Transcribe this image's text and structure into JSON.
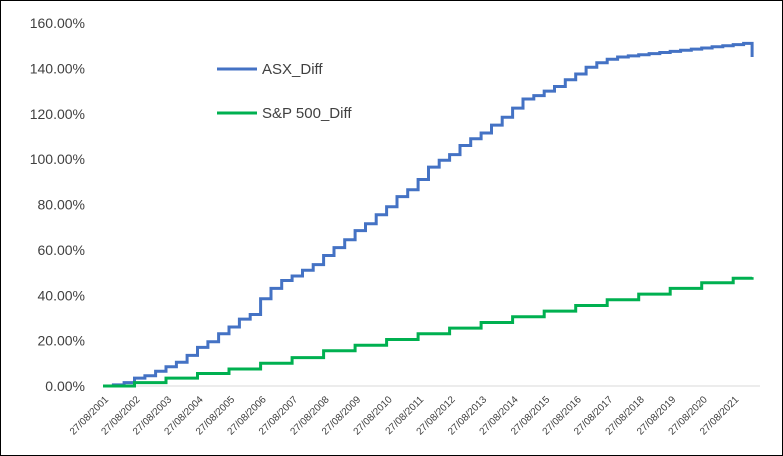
{
  "chart_data": {
    "type": "line",
    "title": "",
    "xlabel": "",
    "ylabel": "",
    "ylim": [
      0,
      160
    ],
    "y_ticks": [
      "0.00%",
      "20.00%",
      "40.00%",
      "60.00%",
      "80.00%",
      "100.00%",
      "120.00%",
      "140.00%",
      "160.00%"
    ],
    "x_tick_labels": [
      "27/08/2001",
      "27/08/2002",
      "27/08/2003",
      "27/08/2004",
      "27/08/2005",
      "27/08/2006",
      "27/08/2007",
      "27/08/2008",
      "27/08/2009",
      "27/08/2010",
      "27/08/2011",
      "27/08/2012",
      "27/08/2013",
      "27/08/2014",
      "27/08/2015",
      "27/08/2016",
      "27/08/2017",
      "27/08/2018",
      "27/08/2019",
      "27/08/2020",
      "27/08/2021"
    ],
    "grid": false,
    "legend_position": "top-left",
    "series": [
      {
        "name": "ASX_Diff",
        "color": "#4472C4",
        "x": [
          2001.0,
          2001.33,
          2001.67,
          2002.0,
          2002.33,
          2002.67,
          2003.0,
          2003.33,
          2003.67,
          2004.0,
          2004.33,
          2004.67,
          2005.0,
          2005.33,
          2005.67,
          2006.0,
          2006.33,
          2006.67,
          2007.0,
          2007.33,
          2007.67,
          2008.0,
          2008.33,
          2008.67,
          2009.0,
          2009.33,
          2009.67,
          2010.0,
          2010.33,
          2010.67,
          2011.0,
          2011.33,
          2011.67,
          2012.0,
          2012.33,
          2012.67,
          2013.0,
          2013.33,
          2013.67,
          2014.0,
          2014.33,
          2014.67,
          2015.0,
          2015.33,
          2015.67,
          2016.0,
          2016.33,
          2016.67,
          2017.0,
          2017.33,
          2017.67,
          2018.0,
          2018.33,
          2018.67,
          2019.0,
          2019.33,
          2019.67,
          2020.0,
          2020.33,
          2020.67,
          2021.0,
          2021.33,
          2021.6
        ],
        "values": [
          0.0,
          0.5,
          1.5,
          3.5,
          4.5,
          6.5,
          8.5,
          10.5,
          13.5,
          17.0,
          19.5,
          23.0,
          26.0,
          29.5,
          31.5,
          38.5,
          43.0,
          46.5,
          48.5,
          51.0,
          53.5,
          57.5,
          61.0,
          64.5,
          68.5,
          71.5,
          75.5,
          79.0,
          83.5,
          86.5,
          91.0,
          96.5,
          99.5,
          102.0,
          106.0,
          109.0,
          111.5,
          115.0,
          118.5,
          122.5,
          126.5,
          128.0,
          130.0,
          132.0,
          135.0,
          137.5,
          140.5,
          142.5,
          144.0,
          145.0,
          145.5,
          146.0,
          146.5,
          147.0,
          147.5,
          148.0,
          148.5,
          149.0,
          149.5,
          150.0,
          150.5,
          151.0,
          145.0
        ]
      },
      {
        "name": "S&P 500_Diff",
        "color": "#00B050",
        "x": [
          2001.0,
          2002.0,
          2003.0,
          2004.0,
          2005.0,
          2006.0,
          2007.0,
          2008.0,
          2009.0,
          2010.0,
          2011.0,
          2012.0,
          2013.0,
          2014.0,
          2015.0,
          2016.0,
          2017.0,
          2018.0,
          2019.0,
          2020.0,
          2021.0,
          2021.6
        ],
        "values": [
          0.0,
          1.5,
          3.5,
          5.5,
          7.5,
          10.0,
          12.5,
          15.5,
          18.0,
          20.5,
          23.0,
          25.5,
          28.0,
          30.5,
          33.0,
          35.5,
          38.0,
          40.5,
          43.0,
          45.5,
          47.5,
          48.0
        ]
      }
    ]
  }
}
